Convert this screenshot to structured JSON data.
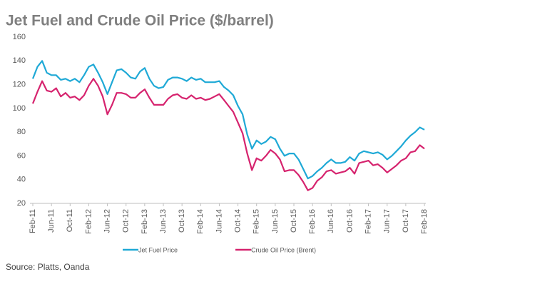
{
  "chart_data": {
    "type": "line",
    "title": "Jet Fuel and Crude Oil Price ($/barrel)",
    "source": "Source: Platts, Oanda",
    "categories": [
      "Feb-11",
      null,
      null,
      null,
      "Jun-11",
      null,
      null,
      null,
      "Oct-11",
      null,
      null,
      null,
      "Feb-12",
      null,
      null,
      null,
      "Jun-12",
      null,
      null,
      null,
      "Oct-12",
      null,
      null,
      null,
      "Feb-13",
      null,
      null,
      null,
      "Jun-13",
      null,
      null,
      null,
      "Oct-13",
      null,
      null,
      null,
      "Feb-14",
      null,
      null,
      null,
      "Jun-14",
      null,
      null,
      null,
      "Oct-14",
      null,
      null,
      null,
      "Feb-15",
      null,
      null,
      null,
      "Jun-15",
      null,
      null,
      null,
      "Oct-15",
      null,
      null,
      null,
      "Feb-16",
      null,
      null,
      null,
      "Jun-16",
      null,
      null,
      null,
      "Oct-16",
      null,
      null,
      null,
      "Feb-17",
      null,
      null,
      null,
      "Jun-17",
      null,
      null,
      null,
      "Oct-17",
      null,
      null,
      null,
      "Feb-18"
    ],
    "series": [
      {
        "name": "Jet Fuel Price",
        "color": "#1fa9d6",
        "values": [
          125,
          135,
          140,
          130,
          128,
          128,
          124,
          125,
          123,
          125,
          122,
          128,
          135,
          137,
          130,
          122,
          112,
          122,
          132,
          133,
          130,
          126,
          125,
          131,
          134,
          125,
          119,
          117,
          118,
          124,
          126,
          126,
          125,
          123,
          126,
          124,
          125,
          122,
          122,
          122,
          123,
          118,
          115,
          111,
          102,
          95,
          78,
          66,
          73,
          70,
          72,
          76,
          74,
          66,
          60,
          62,
          62,
          57,
          49,
          41,
          43,
          47,
          50,
          54,
          57,
          54,
          54,
          55,
          59,
          56,
          62,
          64,
          63,
          62,
          63,
          61,
          57,
          60,
          64,
          68,
          73,
          77,
          80,
          84,
          82
        ]
      },
      {
        "name": "Crude Oil Price (Brent)",
        "color": "#d6236e",
        "values": [
          104,
          114,
          123,
          115,
          114,
          117,
          110,
          113,
          109,
          110,
          107,
          111,
          119,
          125,
          119,
          110,
          95,
          103,
          113,
          113,
          112,
          109,
          109,
          113,
          116,
          109,
          103,
          103,
          103,
          108,
          111,
          112,
          109,
          108,
          111,
          108,
          109,
          107,
          108,
          110,
          112,
          107,
          102,
          97,
          88,
          79,
          62,
          48,
          58,
          56,
          60,
          65,
          62,
          57,
          47,
          48,
          48,
          44,
          38,
          31,
          33,
          39,
          42,
          47,
          48,
          45,
          46,
          47,
          50,
          45,
          54,
          55,
          56,
          52,
          53,
          50,
          46,
          49,
          52,
          56,
          58,
          63,
          64,
          69,
          66
        ]
      }
    ],
    "ylim": [
      20,
      160
    ],
    "yticks": [
      20,
      40,
      60,
      80,
      100,
      120,
      140,
      160
    ],
    "grid": false
  }
}
